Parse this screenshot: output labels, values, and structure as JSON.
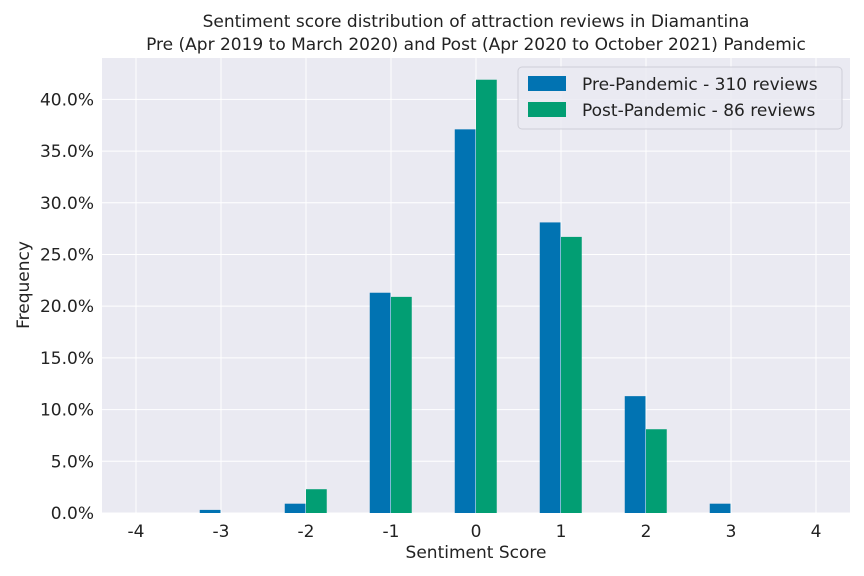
{
  "chart_data": {
    "type": "bar",
    "title": "Sentiment score distribution of attraction reviews in Diamantina",
    "subtitle": "Pre (Apr 2019 to March 2020) and Post (Apr 2020 to October 2021) Pandemic",
    "xlabel": "Sentiment Score",
    "ylabel": "Frequency",
    "categories": [
      "-4",
      "-3",
      "-2",
      "-1",
      "0",
      "1",
      "2",
      "3",
      "4"
    ],
    "series": [
      {
        "name": "Pre-Pandemic - 310 reviews",
        "color": "#0173b2",
        "values": [
          0.0,
          0.3,
          0.9,
          21.3,
          37.1,
          28.1,
          11.3,
          0.9,
          0.0
        ]
      },
      {
        "name": "Post-Pandemic - 86 reviews",
        "color": "#029e73",
        "values": [
          0.0,
          0.0,
          2.3,
          20.9,
          41.9,
          26.7,
          8.1,
          0.0,
          0.0
        ]
      }
    ],
    "ylim": [
      0,
      44
    ],
    "yticks": [
      0,
      5,
      10,
      15,
      20,
      25,
      30,
      35,
      40
    ],
    "ytick_labels": [
      "0.0%",
      "5.0%",
      "10.0%",
      "15.0%",
      "20.0%",
      "25.0%",
      "30.0%",
      "35.0%",
      "40.0%"
    ],
    "grid": true,
    "legend_position": "top-right",
    "background_color": "#eaeaf2"
  }
}
